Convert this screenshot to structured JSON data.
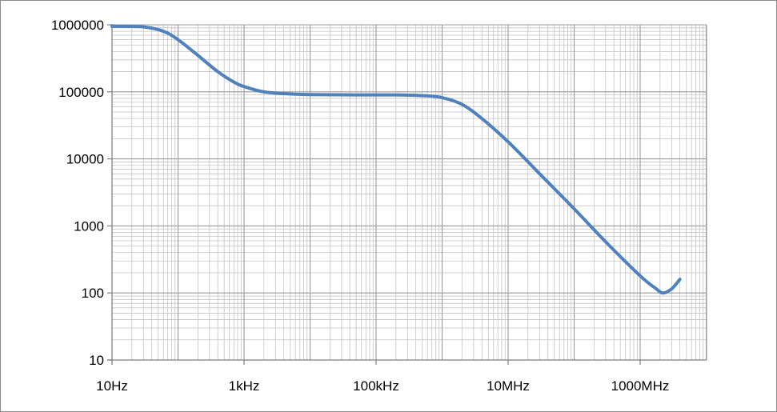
{
  "chart_data": {
    "type": "line",
    "title": "",
    "xlabel": "",
    "ylabel": "",
    "x_scale": "log",
    "y_scale": "log",
    "xlim": [
      10,
      5000000000
    ],
    "ylim": [
      10,
      1000000
    ],
    "grid": true,
    "legend": "none",
    "line_color": "#4f81bd",
    "x_tick_labels": [
      {
        "value": 10,
        "label": "10Hz"
      },
      {
        "value": 1000,
        "label": "1kHz"
      },
      {
        "value": 100000,
        "label": "100kHz"
      },
      {
        "value": 10000000,
        "label": "10MHz"
      },
      {
        "value": 1000000000,
        "label": "1000MHz"
      }
    ],
    "y_tick_labels": [
      {
        "value": 10,
        "label": "10"
      },
      {
        "value": 100,
        "label": "100"
      },
      {
        "value": 1000,
        "label": "1000"
      },
      {
        "value": 10000,
        "label": "10000"
      },
      {
        "value": 100000,
        "label": "100000"
      },
      {
        "value": 1000000,
        "label": "1000000"
      }
    ],
    "series": [
      {
        "values": [
          [
            10,
            950000
          ],
          [
            30,
            930000
          ],
          [
            60,
            800000
          ],
          [
            100,
            600000
          ],
          [
            200,
            350000
          ],
          [
            400,
            200000
          ],
          [
            700,
            140000
          ],
          [
            1000,
            120000
          ],
          [
            2000,
            100000
          ],
          [
            5000,
            93000
          ],
          [
            10000,
            91000
          ],
          [
            50000,
            90000
          ],
          [
            200000,
            90000
          ],
          [
            500000,
            88000
          ],
          [
            1000000,
            82000
          ],
          [
            2000000,
            65000
          ],
          [
            4000000,
            40000
          ],
          [
            10000000,
            18000
          ],
          [
            30000000,
            6000
          ],
          [
            100000000,
            1800
          ],
          [
            300000000,
            580
          ],
          [
            1000000000,
            180
          ],
          [
            1700000000,
            118
          ],
          [
            2200000000,
            100
          ],
          [
            3000000000,
            115
          ],
          [
            4000000000,
            160
          ]
        ]
      }
    ]
  }
}
